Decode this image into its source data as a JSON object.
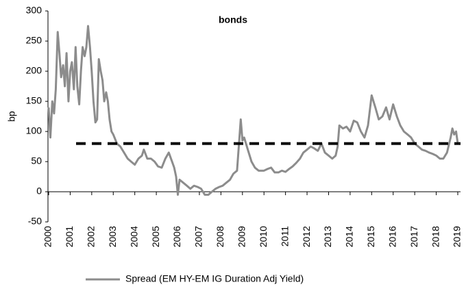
{
  "chart_data": {
    "type": "line",
    "title": "bonds",
    "ylabel": "bp",
    "x": [
      2000.0,
      2000.08,
      2000.17,
      2000.25,
      2000.33,
      2000.42,
      2000.5,
      2000.58,
      2000.67,
      2000.75,
      2000.83,
      2000.92,
      2001.0,
      2001.08,
      2001.17,
      2001.25,
      2001.33,
      2001.42,
      2001.5,
      2001.58,
      2001.67,
      2001.75,
      2001.83,
      2001.92,
      2002.0,
      2002.08,
      2002.17,
      2002.25,
      2002.33,
      2002.42,
      2002.5,
      2002.58,
      2002.67,
      2002.75,
      2002.83,
      2002.92,
      2003.0,
      2003.17,
      2003.33,
      2003.5,
      2003.67,
      2003.83,
      2004.0,
      2004.17,
      2004.33,
      2004.42,
      2004.58,
      2004.75,
      2004.92,
      2005.08,
      2005.25,
      2005.42,
      2005.58,
      2005.75,
      2005.83,
      2005.92,
      2006.0,
      2006.08,
      2006.25,
      2006.42,
      2006.58,
      2006.75,
      2006.92,
      2007.08,
      2007.25,
      2007.42,
      2007.58,
      2007.75,
      2007.92,
      2008.08,
      2008.25,
      2008.42,
      2008.58,
      2008.75,
      2008.92,
      2009.0,
      2009.08,
      2009.25,
      2009.42,
      2009.58,
      2009.75,
      2010.0,
      2010.17,
      2010.33,
      2010.5,
      2010.67,
      2010.83,
      2011.0,
      2011.17,
      2011.33,
      2011.5,
      2011.67,
      2011.83,
      2012.0,
      2012.17,
      2012.33,
      2012.5,
      2012.67,
      2012.83,
      2013.0,
      2013.17,
      2013.33,
      2013.42,
      2013.5,
      2013.67,
      2013.83,
      2014.0,
      2014.17,
      2014.33,
      2014.5,
      2014.67,
      2014.83,
      2015.0,
      2015.17,
      2015.33,
      2015.5,
      2015.67,
      2015.83,
      2016.0,
      2016.17,
      2016.33,
      2016.5,
      2016.67,
      2016.83,
      2017.0,
      2017.17,
      2017.33,
      2017.5,
      2017.67,
      2017.83,
      2018.0,
      2018.17,
      2018.33,
      2018.5,
      2018.67,
      2018.75,
      2018.83,
      2018.92,
      2019.0
    ],
    "series": [
      {
        "name": "Spread (EM HY-EM IG Duration Adj Yield)",
        "color": "#8c8c8c",
        "values": [
          140,
          90,
          150,
          130,
          170,
          265,
          230,
          190,
          210,
          175,
          230,
          150,
          200,
          215,
          170,
          240,
          175,
          145,
          200,
          240,
          225,
          240,
          275,
          240,
          200,
          150,
          115,
          120,
          220,
          200,
          185,
          150,
          165,
          150,
          120,
          100,
          95,
          80,
          75,
          65,
          55,
          50,
          45,
          55,
          60,
          70,
          55,
          55,
          50,
          42,
          40,
          55,
          65,
          48,
          40,
          25,
          -5,
          20,
          15,
          10,
          5,
          10,
          8,
          5,
          -5,
          -5,
          0,
          5,
          8,
          10,
          15,
          20,
          30,
          35,
          120,
          85,
          90,
          70,
          50,
          40,
          35,
          35,
          38,
          40,
          32,
          32,
          35,
          33,
          38,
          42,
          48,
          55,
          65,
          70,
          75,
          72,
          68,
          80,
          65,
          60,
          55,
          60,
          75,
          110,
          105,
          108,
          100,
          118,
          115,
          100,
          90,
          110,
          160,
          140,
          120,
          125,
          140,
          120,
          145,
          125,
          110,
          100,
          95,
          90,
          80,
          75,
          70,
          68,
          65,
          63,
          60,
          55,
          55,
          65,
          90,
          105,
          95,
          100,
          80
        ]
      }
    ],
    "reference_line": {
      "value": 80,
      "color": "#000000",
      "dashed": true
    },
    "xlim": [
      2000,
      2019
    ],
    "xticks": [
      2000,
      2001,
      2002,
      2003,
      2004,
      2005,
      2006,
      2007,
      2008,
      2009,
      2010,
      2011,
      2012,
      2013,
      2014,
      2015,
      2016,
      2017,
      2018,
      2019
    ],
    "ylim": [
      -50,
      300
    ],
    "yticks": [
      -50,
      0,
      50,
      100,
      150,
      200,
      250,
      300
    ]
  }
}
